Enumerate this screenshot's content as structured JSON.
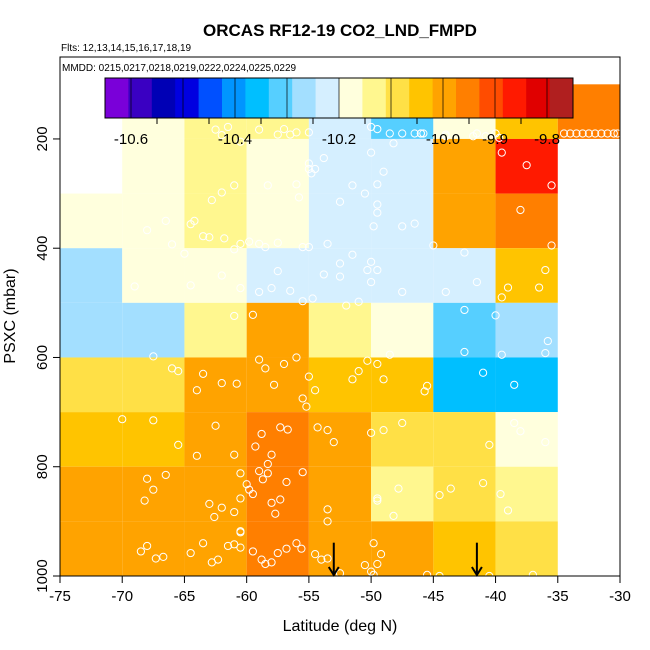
{
  "chart_data": {
    "type": "heatmap",
    "title": "ORCAS RF12-19 CO2_LND_FMPD",
    "subtitle_flights": "Flts: 12,13,14,15,16,17,18,19",
    "legend_mmdd": "MMDD: 0215,0217,0218,0219,0222,0224,0225,0229",
    "xlabel": "Latitude (deg N)",
    "ylabel": "PSXC (mbar)",
    "xlim": [
      -75,
      -30
    ],
    "ylim": [
      1000,
      50
    ],
    "x_ticks": [
      -75,
      -70,
      -65,
      -60,
      -55,
      -50,
      -45,
      -40,
      -35,
      -30
    ],
    "x_tick_labels": [
      "-75",
      "-70",
      "-65",
      "-60",
      "-55",
      "-50",
      "-45",
      "-40",
      "-35",
      "-30"
    ],
    "y_ticks": [
      200,
      400,
      600,
      800,
      1000
    ],
    "y_tick_labels": [
      "200",
      "400",
      "600",
      "800",
      "1000"
    ],
    "colorbar": {
      "range": [
        -10.65,
        -9.75
      ],
      "colors": [
        "#7a00d9",
        "#3a00c2",
        "#0000b5",
        "#0000e0",
        "#0050ff",
        "#0095ff",
        "#00bfff",
        "#56cfff",
        "#a3dfff",
        "#d5efff",
        "#ffffdd",
        "#fff78f",
        "#ffe046",
        "#ffc400",
        "#ffa300",
        "#ff7f00",
        "#ff4c00",
        "#ff1a00",
        "#e00000",
        "#b01f1f"
      ],
      "ticks": [
        -10.6,
        -10.4,
        -10.2,
        -10.0,
        -9.9,
        -9.8
      ],
      "tick_labels": [
        "-10.6",
        "-10.4",
        "-10.2",
        "-10.0",
        "-9.9",
        "-9.8"
      ]
    },
    "lat_bins": [
      -72.5,
      -67.5,
      -62.5,
      -57.5,
      -52.5,
      -47.5,
      -42.5,
      -37.5,
      -32.5
    ],
    "pressure_bins": [
      150,
      250,
      350,
      450,
      550,
      650,
      750,
      850,
      950
    ],
    "values": [
      [
        null,
        -10.17,
        -10.15,
        -10.15,
        -10.24,
        -10.31,
        -10.19,
        -10.05,
        -9.97
      ],
      [
        null,
        -10.17,
        -10.15,
        -10.19,
        -10.21,
        -10.24,
        -10.01,
        -9.88,
        null
      ],
      [
        -10.19,
        -10.19,
        -10.14,
        -10.18,
        -10.21,
        -10.24,
        -10.02,
        -9.94,
        null
      ],
      [
        -10.26,
        -10.16,
        -10.19,
        -10.21,
        -10.24,
        -10.24,
        -10.24,
        -10.05,
        null
      ],
      [
        -10.26,
        -10.26,
        -10.12,
        -10.02,
        -10.14,
        -10.18,
        -10.31,
        -10.25,
        null
      ],
      [
        -10.09,
        -10.07,
        -10.02,
        -9.98,
        -10.04,
        -10.04,
        -10.36,
        -10.36,
        null
      ],
      [
        -10.04,
        -10.03,
        -10.0,
        -9.96,
        -10.02,
        -10.08,
        -10.08,
        -10.2,
        null
      ],
      [
        -10.02,
        -10.01,
        -10.02,
        -9.96,
        -9.99,
        -10.12,
        -10.1,
        -10.14,
        null
      ],
      [
        -10.0,
        -10.0,
        -9.98,
        -9.97,
        -10.01,
        -10.02,
        -10.06,
        -10.07,
        null
      ]
    ],
    "points": [
      [
        -68.5,
        955
      ],
      [
        -68,
        945
      ],
      [
        -67.3,
        968
      ],
      [
        -66.7,
        965
      ],
      [
        -64.5,
        958
      ],
      [
        -63.5,
        940
      ],
      [
        -62.8,
        975
      ],
      [
        -62.3,
        970
      ],
      [
        -61.5,
        945
      ],
      [
        -61,
        942
      ],
      [
        -60.5,
        948
      ],
      [
        -59.5,
        955
      ],
      [
        -58.8,
        970
      ],
      [
        -58.5,
        978
      ],
      [
        -58,
        975
      ],
      [
        -57.5,
        958
      ],
      [
        -56.8,
        950
      ],
      [
        -56,
        940
      ],
      [
        -55.6,
        950
      ],
      [
        -54.5,
        960
      ],
      [
        -54,
        970
      ],
      [
        -53.5,
        968
      ],
      [
        -52.5,
        995
      ],
      [
        -50.5,
        980
      ],
      [
        -50,
        992
      ],
      [
        -49.8,
        998
      ],
      [
        -49.5,
        978
      ],
      [
        -49.8,
        940
      ],
      [
        -49.2,
        960
      ],
      [
        -45.5,
        998
      ],
      [
        -44.5,
        1000
      ],
      [
        -40.5,
        1000
      ],
      [
        -37,
        998
      ],
      [
        -68.2,
        862
      ],
      [
        -68,
        822
      ],
      [
        -67.5,
        842
      ],
      [
        -66.5,
        815
      ],
      [
        -63,
        868
      ],
      [
        -62.6,
        892
      ],
      [
        -62,
        875
      ],
      [
        -61,
        883
      ],
      [
        -60.5,
        920
      ],
      [
        -60.5,
        918
      ],
      [
        -60.5,
        858
      ],
      [
        -60,
        832
      ],
      [
        -59.8,
        842
      ],
      [
        -59.5,
        850
      ],
      [
        -59,
        808
      ],
      [
        -58.7,
        823
      ],
      [
        -58.3,
        812
      ],
      [
        -58,
        866
      ],
      [
        -57.7,
        886
      ],
      [
        -57.3,
        860
      ],
      [
        -56.8,
        828
      ],
      [
        -55.5,
        810
      ],
      [
        -53.5,
        878
      ],
      [
        -53.5,
        900
      ],
      [
        -49.5,
        862
      ],
      [
        -49.5,
        858
      ],
      [
        -48.2,
        890
      ],
      [
        -47.8,
        840
      ],
      [
        -44.5,
        852
      ],
      [
        -43.6,
        840
      ],
      [
        -41,
        830
      ],
      [
        -39.6,
        850
      ],
      [
        -39,
        880
      ],
      [
        -70,
        713
      ],
      [
        -67.5,
        715
      ],
      [
        -65.5,
        760
      ],
      [
        -64,
        780
      ],
      [
        -62.5,
        725
      ],
      [
        -61,
        778
      ],
      [
        -60.5,
        812
      ],
      [
        -59.3,
        763
      ],
      [
        -58.8,
        740
      ],
      [
        -58.3,
        795
      ],
      [
        -58,
        778
      ],
      [
        -57.3,
        728
      ],
      [
        -56.7,
        732
      ],
      [
        -55.2,
        690
      ],
      [
        -54.3,
        728
      ],
      [
        -53.5,
        733
      ],
      [
        -53,
        755
      ],
      [
        -50,
        738
      ],
      [
        -49,
        733
      ],
      [
        -47.5,
        720
      ],
      [
        -45.7,
        662
      ],
      [
        -40.5,
        760
      ],
      [
        -38.5,
        720
      ],
      [
        -38,
        735
      ],
      [
        -36,
        755
      ],
      [
        -67.5,
        598
      ],
      [
        -66,
        620
      ],
      [
        -65.5,
        625
      ],
      [
        -64,
        660
      ],
      [
        -63.5,
        630
      ],
      [
        -62,
        647
      ],
      [
        -60.8,
        648
      ],
      [
        -59,
        604
      ],
      [
        -58.5,
        620
      ],
      [
        -57.8,
        650
      ],
      [
        -57,
        612
      ],
      [
        -56,
        600
      ],
      [
        -55.5,
        675
      ],
      [
        -55,
        635
      ],
      [
        -54.5,
        660
      ],
      [
        -51.5,
        640
      ],
      [
        -51,
        625
      ],
      [
        -50.3,
        606
      ],
      [
        -49.5,
        612
      ],
      [
        -49,
        640
      ],
      [
        -48.5,
        595
      ],
      [
        -45.5,
        652
      ],
      [
        -42.5,
        590
      ],
      [
        -41,
        628
      ],
      [
        -39.5,
        595
      ],
      [
        -38.5,
        650
      ],
      [
        -36,
        592
      ],
      [
        -35.8,
        570
      ],
      [
        -69,
        470
      ],
      [
        -64.5,
        468
      ],
      [
        -62,
        450
      ],
      [
        -61,
        524
      ],
      [
        -60.5,
        473
      ],
      [
        -59.5,
        522
      ],
      [
        -59,
        480
      ],
      [
        -58,
        473
      ],
      [
        -57.5,
        442
      ],
      [
        -56.5,
        478
      ],
      [
        -55.5,
        497
      ],
      [
        -54.7,
        492
      ],
      [
        -53.8,
        448
      ],
      [
        -52.5,
        452
      ],
      [
        -52,
        505
      ],
      [
        -51,
        498
      ],
      [
        -50,
        462
      ],
      [
        -49.5,
        440
      ],
      [
        -47.5,
        480
      ],
      [
        -44,
        480
      ],
      [
        -42.5,
        513
      ],
      [
        -41.5,
        462
      ],
      [
        -40,
        523
      ],
      [
        -39.5,
        490
      ],
      [
        -39,
        472
      ],
      [
        -36.5,
        472
      ],
      [
        -36,
        440
      ],
      [
        -35.5,
        395
      ],
      [
        -68,
        367
      ],
      [
        -66,
        393
      ],
      [
        -65,
        410
      ],
      [
        -64.2,
        350
      ],
      [
        -63.5,
        378
      ],
      [
        -63,
        380
      ],
      [
        -61.8,
        382
      ],
      [
        -61,
        402
      ],
      [
        -60.5,
        392
      ],
      [
        -59.8,
        388
      ],
      [
        -59,
        392
      ],
      [
        -58.5,
        398
      ],
      [
        -57.5,
        390
      ],
      [
        -55.5,
        398
      ],
      [
        -55,
        398
      ],
      [
        -53.5,
        392
      ],
      [
        -52.5,
        428
      ],
      [
        -51.5,
        412
      ],
      [
        -50.3,
        440
      ],
      [
        -50,
        425
      ],
      [
        -49.8,
        360
      ],
      [
        -49.5,
        335
      ],
      [
        -47.5,
        360
      ],
      [
        -46.5,
        355
      ],
      [
        -45,
        395
      ],
      [
        -42.5,
        408
      ],
      [
        -38,
        330
      ],
      [
        -35.5,
        285
      ],
      [
        -66.5,
        350
      ],
      [
        -64.5,
        356
      ],
      [
        -62.8,
        312
      ],
      [
        -62,
        298
      ],
      [
        -61,
        285
      ],
      [
        -58.3,
        285
      ],
      [
        -56,
        283
      ],
      [
        -55.8,
        307
      ],
      [
        -55,
        245
      ],
      [
        -54.8,
        263
      ],
      [
        -53.8,
        235
      ],
      [
        -52.5,
        315
      ],
      [
        -51.5,
        285
      ],
      [
        -50.5,
        300
      ],
      [
        -50,
        225
      ],
      [
        -49.5,
        283
      ],
      [
        -49.5,
        320
      ],
      [
        -49,
        260
      ],
      [
        -48.2,
        208
      ],
      [
        -46,
        190
      ],
      [
        -44,
        192
      ],
      [
        -41.5,
        190
      ],
      [
        -39.5,
        225
      ],
      [
        -37.5,
        248
      ],
      [
        -62.5,
        183
      ],
      [
        -62,
        193
      ],
      [
        -61.5,
        178
      ],
      [
        -60.5,
        205
      ],
      [
        -59,
        183
      ],
      [
        -57.5,
        192
      ],
      [
        -57,
        182
      ],
      [
        -56.5,
        192
      ],
      [
        -56,
        188
      ],
      [
        -55,
        188
      ],
      [
        -54.5,
        255
      ],
      [
        -55,
        255
      ],
      [
        -50,
        178
      ],
      [
        -49.5,
        182
      ],
      [
        -48.5,
        190
      ],
      [
        -47.5,
        190
      ],
      [
        -46.5,
        190
      ],
      [
        -46,
        190
      ],
      [
        -45.8,
        190
      ],
      [
        -44,
        195
      ],
      [
        -41.8,
        195
      ],
      [
        -40.8,
        195
      ],
      [
        -40,
        190
      ],
      [
        -39.7,
        198
      ],
      [
        -34.5,
        190
      ],
      [
        -34,
        190
      ],
      [
        -33.5,
        190
      ],
      [
        -33,
        190
      ],
      [
        -32.5,
        190
      ],
      [
        -32,
        190
      ],
      [
        -31.5,
        190
      ],
      [
        -31,
        190
      ],
      [
        -30.5,
        190
      ],
      [
        -30.2,
        190
      ]
    ],
    "arrows": [
      -53,
      -41.5
    ]
  }
}
